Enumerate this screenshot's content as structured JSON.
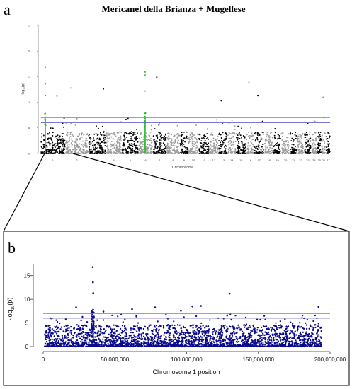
{
  "figure": {
    "title": "Mericanel della Brianza + Mugellese",
    "panel_a_letter": "a",
    "panel_b_letter": "b"
  },
  "colors": {
    "panel_a_dark": "#000000",
    "panel_a_light": "#999999",
    "panel_a_highlight": "#22bb22",
    "panel_b_points": "#0a0a8a",
    "threshold_red": "#ee5555",
    "threshold_blue": "#6666cc"
  },
  "chart_data": [
    {
      "type": "scatter",
      "subtype": "manhattan",
      "title": "Mericanel della Brianza + Mugellese",
      "xlabel": "Chromosome",
      "ylabel_text": "-log10(p)",
      "ylabel_parts": {
        "pre": "-log",
        "sub": "10",
        "post": "(p)"
      },
      "ylim": [
        0,
        25
      ],
      "y_ticks": [
        0,
        5,
        10,
        15,
        20,
        25
      ],
      "chromosomes": [
        "1",
        "2",
        "3",
        "4",
        "5",
        "6",
        "7",
        "8",
        "9",
        "10",
        "11",
        "12",
        "13",
        "14",
        "15",
        "16",
        "17",
        "18",
        "19",
        "20",
        "21",
        "22",
        "23",
        "24",
        "25",
        "26",
        "27"
      ],
      "chromosome_lengths_mb": [
        195,
        180,
        135,
        125,
        130,
        108,
        105,
        104,
        60,
        78,
        80,
        68,
        68,
        62,
        75,
        56,
        78,
        68,
        58,
        62,
        52,
        52,
        50,
        40,
        30,
        28,
        32
      ],
      "highlighted_chromosomes": [
        "1",
        "6"
      ],
      "thresholds": {
        "red": 7.0,
        "blue": 6.0
      },
      "legend": "none",
      "grid": false,
      "top_hits": [
        {
          "chromosome": "1",
          "position_mb": 34.5,
          "value": 16.8
        },
        {
          "chromosome": "1",
          "position_mb": 34.7,
          "value": 13.6
        },
        {
          "chromosome": "1",
          "position_mb": 34.9,
          "value": 11.3
        },
        {
          "chromosome": "1",
          "position_mb": 130.0,
          "value": 11.2
        },
        {
          "chromosome": "2",
          "position_mb": 40.0,
          "value": 12.8
        },
        {
          "chromosome": "3",
          "position_mb": 120.0,
          "value": 12.6
        },
        {
          "chromosome": "6",
          "position_mb": 50.0,
          "value": 15.9
        },
        {
          "chromosome": "6",
          "position_mb": 50.3,
          "value": 15.3
        },
        {
          "chromosome": "6",
          "position_mb": 50.6,
          "value": 12.2
        },
        {
          "chromosome": "7",
          "position_mb": 30.0,
          "value": 14.9
        },
        {
          "chromosome": "13",
          "position_mb": 20.0,
          "value": 10.3
        },
        {
          "chromosome": "16",
          "position_mb": 20.0,
          "value": 13.9
        },
        {
          "chromosome": "17",
          "position_mb": 30.0,
          "value": 11.3
        },
        {
          "chromosome": "26",
          "position_mb": 10.0,
          "value": 11.0
        }
      ]
    },
    {
      "type": "scatter",
      "subtype": "regional",
      "xlabel": "Chromosome 1 position",
      "ylabel_text": "-log10(p)",
      "ylabel_parts": {
        "pre": "-log",
        "sub": "10",
        "post": "(p)"
      },
      "xlim": [
        0,
        200000000
      ],
      "ylim": [
        0,
        17.5
      ],
      "x_ticks": [
        0,
        50000000,
        100000000,
        150000000,
        200000000
      ],
      "x_tick_labels": [
        "0",
        "50,000,000",
        "100,000,000",
        "150,000,000",
        "200,000,000"
      ],
      "y_ticks": [
        0,
        5,
        10,
        15
      ],
      "thresholds": {
        "red": 7.0,
        "blue": 6.0
      },
      "legend": "none",
      "grid": false,
      "top_hits": [
        {
          "x": 34500000,
          "y": 16.8
        },
        {
          "x": 34700000,
          "y": 13.6
        },
        {
          "x": 34900000,
          "y": 11.3
        },
        {
          "x": 34800000,
          "y": 7.8
        },
        {
          "x": 5000000,
          "y": 6.0
        },
        {
          "x": 23000000,
          "y": 8.3
        },
        {
          "x": 42000000,
          "y": 7.4
        },
        {
          "x": 62000000,
          "y": 7.9
        },
        {
          "x": 78000000,
          "y": 8.3
        },
        {
          "x": 96000000,
          "y": 7.6
        },
        {
          "x": 104000000,
          "y": 8.5
        },
        {
          "x": 110000000,
          "y": 8.6
        },
        {
          "x": 130000000,
          "y": 11.2
        },
        {
          "x": 192000000,
          "y": 8.4
        }
      ]
    }
  ]
}
